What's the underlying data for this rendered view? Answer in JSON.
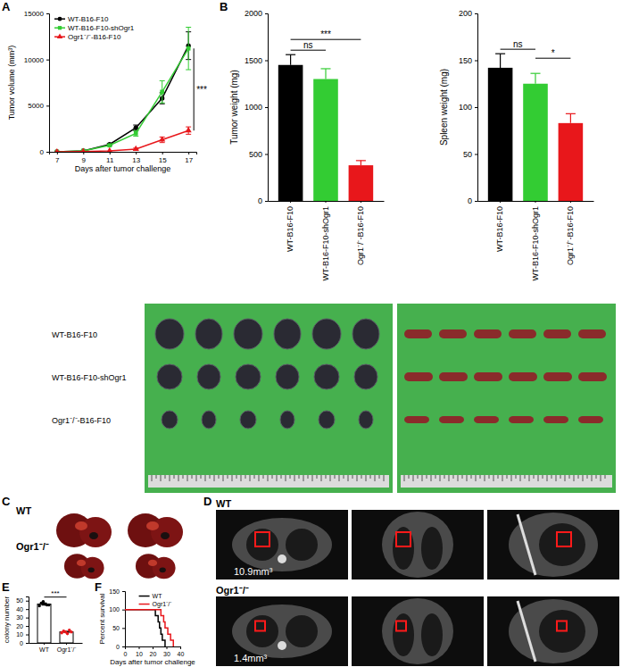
{
  "chart_data": [
    {
      "type": "line",
      "x": [
        7,
        9,
        11,
        13,
        15,
        17
      ],
      "xlim": [
        6.4,
        17.6
      ],
      "xticks": [
        7,
        9,
        11,
        13,
        15,
        17
      ],
      "ylim": [
        0,
        15000
      ],
      "yticks": [
        0,
        5000,
        10000,
        15000
      ],
      "x_label": "Days after tumor challenge",
      "y_label": "Tumor volume (mm³)",
      "legend": "upper left",
      "series": [
        {
          "name": "WT-B16-F10",
          "color": "#000000",
          "marker": "circle",
          "values": [
            0,
            100,
            800,
            2600,
            5800,
            11500
          ],
          "errors": [
            null,
            null,
            100,
            300,
            600,
            1500
          ]
        },
        {
          "name": "WT-B16-F10-shOgr1",
          "color": "#33cc33",
          "marker": "square",
          "values": [
            0,
            100,
            700,
            2000,
            6500,
            11200
          ],
          "errors": [
            null,
            null,
            100,
            300,
            1200,
            2300
          ]
        },
        {
          "name": "Ogr1⁻/⁻-B16-F10",
          "color": "#e8171b",
          "marker": "triangle",
          "values": [
            0,
            30,
            100,
            300,
            1300,
            2300
          ],
          "errors": [
            null,
            null,
            null,
            100,
            300,
            400
          ]
        }
      ],
      "annotations": [
        {
          "text": "***",
          "from": 1,
          "to": 2
        }
      ]
    },
    {
      "type": "bar",
      "categories": [
        "WT-B16-F10",
        "WT-B16-F10-shOgr1",
        "Ogr1⁻/⁻-B16-F10"
      ],
      "values": [
        1450,
        1300,
        380
      ],
      "errors": [
        110,
        110,
        50
      ],
      "colors": [
        "#000000",
        "#33cc33",
        "#e8171b"
      ],
      "y_label": "Tumor weight (mg)",
      "ylim": [
        0,
        2000
      ],
      "yticks": [
        0,
        500,
        1000,
        1500,
        2000
      ],
      "annotations": [
        {
          "text": "ns",
          "from": 0,
          "to": 1
        },
        {
          "text": "***",
          "from": 0,
          "to": 2
        }
      ]
    },
    {
      "type": "bar",
      "categories": [
        "WT-B16-F10",
        "WT-B16-F10-shOgr1",
        "Ogr1⁻/⁻-B16-F10"
      ],
      "values": [
        142,
        125,
        83
      ],
      "errors": [
        15,
        11,
        10
      ],
      "colors": [
        "#000000",
        "#33cc33",
        "#e8171b"
      ],
      "y_label": "Spleen weight (mg)",
      "ylim": [
        0,
        200
      ],
      "yticks": [
        0,
        50,
        100,
        150,
        200
      ],
      "annotations": [
        {
          "text": "ns",
          "from": 0,
          "to": 1
        },
        {
          "text": "*",
          "from": 1,
          "to": 2
        }
      ]
    },
    {
      "type": "bar",
      "categories": [
        "WT",
        "Ogr1⁻/⁻"
      ],
      "values": [
        46,
        13
      ],
      "errors": [
        1.2,
        0.7
      ],
      "points": [
        [
          44,
          47,
          49,
          46,
          45,
          45
        ],
        [
          12,
          14,
          13,
          11,
          15,
          13
        ]
      ],
      "colors": [
        "#000000",
        "#e8171b"
      ],
      "marker": "circle",
      "y_label": "colony number",
      "ylim": [
        0,
        55
      ],
      "yticks": [
        0,
        10,
        20,
        30,
        40,
        50
      ],
      "annotations": [
        {
          "text": "***",
          "from": 0,
          "to": 1
        }
      ]
    },
    {
      "type": "line",
      "line_style": "step",
      "xlim": [
        0,
        40
      ],
      "xticks": [
        0,
        10,
        20,
        30,
        40
      ],
      "ylim": [
        0,
        150
      ],
      "yticks": [
        0,
        50,
        100,
        150
      ],
      "x_label": "Days after tumor challenge",
      "y_label": "Percent survival",
      "legend": "upper right",
      "series": [
        {
          "name": "WT",
          "color": "#000000",
          "x": [
            0,
            22,
            24,
            25,
            26,
            27,
            29
          ],
          "values": [
            100,
            83.3,
            66.7,
            50,
            33.3,
            16.7,
            0
          ]
        },
        {
          "name": "Ogr1⁻/⁻",
          "color": "#e8171b",
          "x": [
            0,
            26,
            28,
            29,
            31,
            33,
            35
          ],
          "values": [
            100,
            83.3,
            66.7,
            50,
            33.3,
            16.7,
            0
          ]
        }
      ]
    }
  ],
  "figure": {
    "panel_labels": [
      "A",
      "B",
      "C",
      "D",
      "E",
      "F"
    ],
    "photo_rows": [
      "WT-B16-F10",
      "WT-B16-F10-shOgr1",
      "Ogr1⁻/⁻-B16-F10"
    ],
    "lung_labels": [
      "WT",
      "Ogr1⁻/⁻"
    ],
    "ct_labels": [
      "WT",
      "Ogr1⁻/⁻"
    ],
    "ct_volumes": [
      "10.9mm³",
      "1.4mm³"
    ]
  }
}
